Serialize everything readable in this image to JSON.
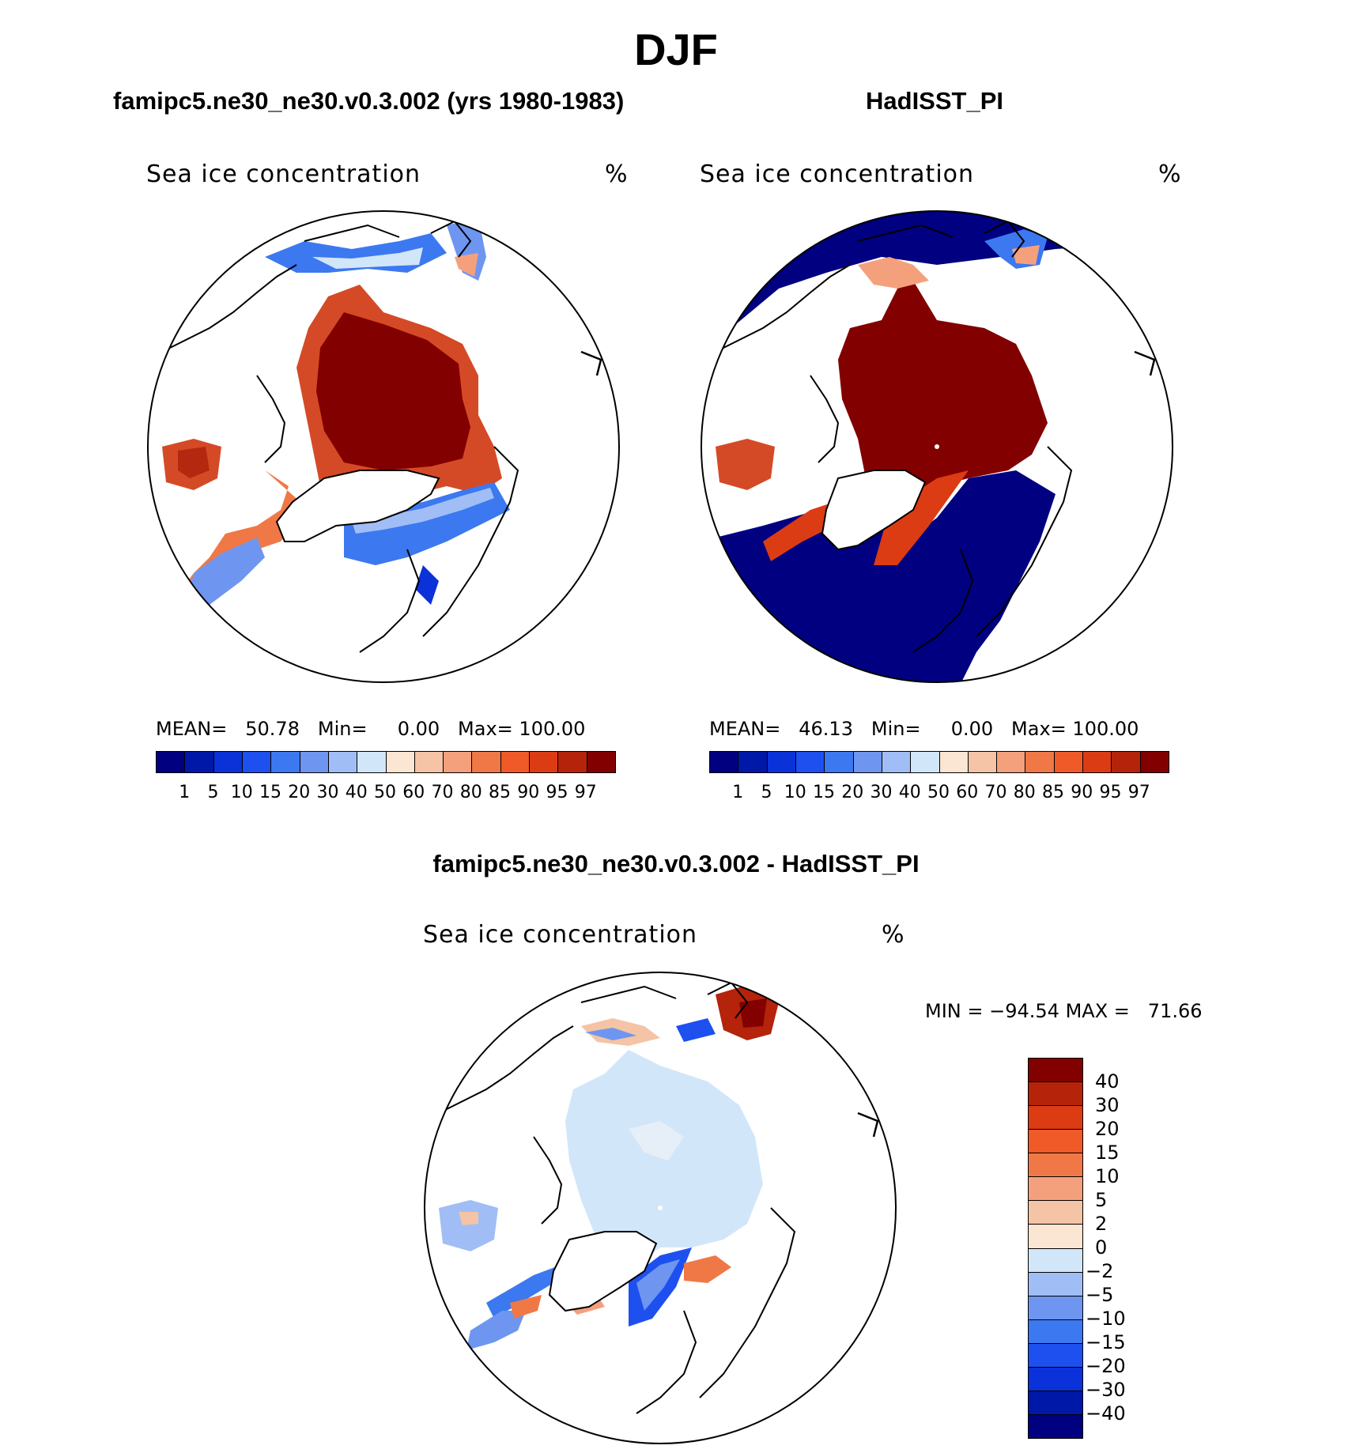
{
  "season_title": "DJF",
  "panels": {
    "model": {
      "title": "famipc5.ne30_ne30.v0.3.002 (yrs 1980-1983)",
      "variable": "Sea ice concentration",
      "units": "%",
      "mean_label": "MEAN=",
      "mean_value": "50.78",
      "min_label": "Min=",
      "min_value": "0.00",
      "max_label": "Max=",
      "max_value": "100.00"
    },
    "obs": {
      "title": "HadISST_PI",
      "variable": "Sea ice concentration",
      "units": "%",
      "mean_label": "MEAN=",
      "mean_value": "46.13",
      "min_label": "Min=",
      "min_value": "0.00",
      "max_label": "Max=",
      "max_value": "100.00"
    },
    "diff": {
      "title": "famipc5.ne30_ne30.v0.3.002 - HadISST_PI",
      "variable": "Sea ice concentration",
      "units": "%",
      "min_label": "MIN =",
      "min_value": "−94.54",
      "max_label": "MAX =",
      "max_value": "71.66"
    }
  },
  "abs_colorbar": {
    "colors": [
      "#000080",
      "#0018a8",
      "#0a32d8",
      "#1e50f0",
      "#3c78f0",
      "#6e96f0",
      "#a0bef5",
      "#d2e6fa",
      "#fae6d2",
      "#f5c3a5",
      "#f5a07d",
      "#f07846",
      "#f05a28",
      "#dc3c14",
      "#b4230a",
      "#820000"
    ],
    "ticks": [
      "1",
      "5",
      "10",
      "15",
      "20",
      "30",
      "40",
      "50",
      "60",
      "70",
      "80",
      "85",
      "90",
      "95",
      "97"
    ]
  },
  "diff_colorbar": {
    "colors_top_to_bottom": [
      "#820000",
      "#b4230a",
      "#dc3c14",
      "#f05a28",
      "#f07846",
      "#f5a07d",
      "#f5c3a5",
      "#fae6d2",
      "#d2e6fa",
      "#a0bef5",
      "#6e96f0",
      "#3c78f0",
      "#1e50f0",
      "#0a32d8",
      "#0018a8",
      "#000080"
    ],
    "ticks_top_to_bottom": [
      "40",
      "30",
      "20",
      "15",
      "10",
      "5",
      "2",
      "0",
      "−2",
      "−5",
      "−10",
      "−15",
      "−20",
      "−30",
      "−40"
    ]
  }
}
